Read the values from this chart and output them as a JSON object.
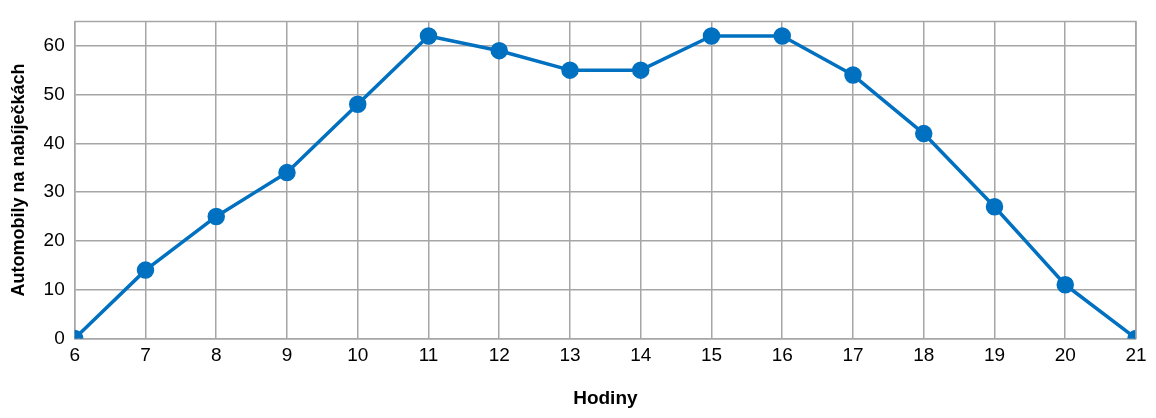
{
  "chart_data": {
    "type": "line",
    "xlabel": "Hodiny",
    "ylabel": "Automobily na nabíječkách",
    "x": [
      6,
      7,
      8,
      9,
      10,
      11,
      12,
      13,
      14,
      15,
      16,
      17,
      18,
      19,
      20,
      21
    ],
    "series": [
      {
        "color": "#0070c0",
        "values": [
          0,
          14,
          25,
          34,
          48,
          62,
          59,
          55,
          55,
          62,
          62,
          54,
          42,
          27,
          11,
          0
        ]
      }
    ],
    "xlim": [
      6,
      21
    ],
    "xticks": [
      6,
      7,
      8,
      9,
      10,
      11,
      12,
      13,
      14,
      15,
      16,
      17,
      18,
      19,
      20,
      21
    ],
    "ylim": [
      0,
      65
    ],
    "yticks": [
      0,
      10,
      20,
      30,
      40,
      50,
      60
    ],
    "grid": true,
    "legend": false,
    "marker": "circle",
    "line_style": "solid"
  }
}
